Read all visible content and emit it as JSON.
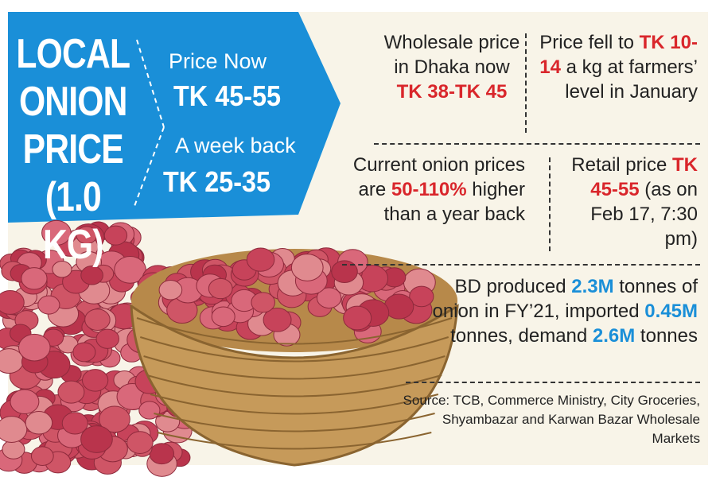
{
  "title_lines": [
    "LOCAL",
    "ONION",
    "PRICE",
    "(1.0 KG)"
  ],
  "prices": [
    {
      "label": "Price Now",
      "value": "TK 45-55"
    },
    {
      "label": "A week back",
      "value": "TK 25-35"
    }
  ],
  "facts": [
    {
      "parts": [
        {
          "text": "Wholesale price in Dhaka now "
        },
        {
          "text": "TK 38-TK 45",
          "color": "#d9262b"
        }
      ]
    },
    {
      "parts": [
        {
          "text": "Price fell to "
        },
        {
          "text": "TK 10-14",
          "color": "#d9262b"
        },
        {
          "text": " a kg at farmers’ level in January"
        }
      ]
    },
    {
      "parts": [
        {
          "text": "Current onion prices are "
        },
        {
          "text": "50-110%",
          "color": "#d9262b"
        },
        {
          "text": " higher than a year back"
        }
      ]
    },
    {
      "parts": [
        {
          "text": "Retail price "
        },
        {
          "text": "TK 45-55",
          "color": "#d9262b"
        },
        {
          "text": " (as on Feb 17, 7:30 pm)"
        }
      ]
    },
    {
      "parts": [
        {
          "text": "BD produced "
        },
        {
          "text": "2.3M",
          "color": "#1a8fd8"
        },
        {
          "text": " tonnes of onion in FY’21, imported "
        },
        {
          "text": "0.45M",
          "color": "#1a8fd8"
        },
        {
          "text": " tonnes, demand "
        },
        {
          "text": "2.6M",
          "color": "#1a8fd8"
        },
        {
          "text": " tonnes"
        }
      ]
    }
  ],
  "source": "Source: TCB, Commerce Ministry, City Groceries, Shyambazar and Karwan Bazar Wholesale Markets"
}
